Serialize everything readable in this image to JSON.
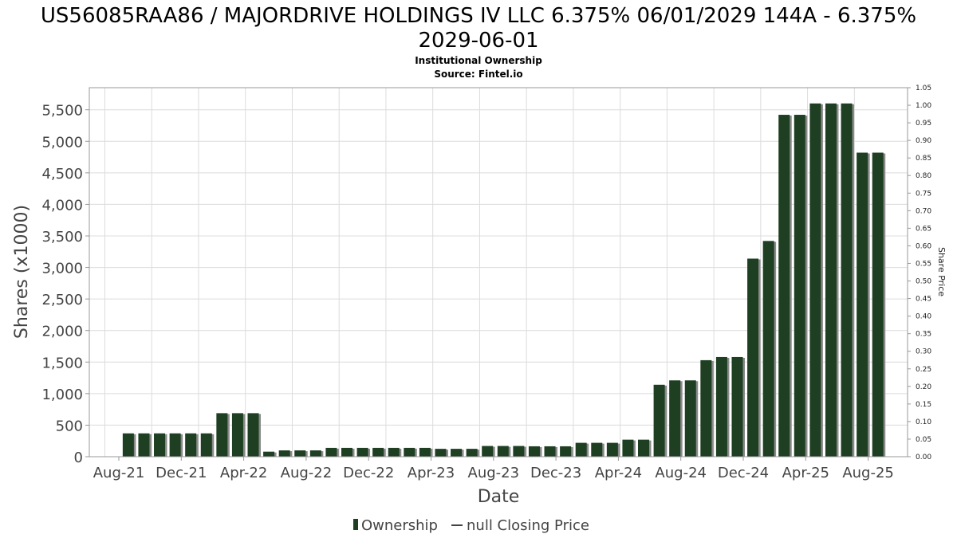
{
  "chart_data": {
    "type": "bar",
    "title_line1": "US56085RAA86 / MAJORDRIVE HOLDINGS IV LLC 6.375% 06/01/2029 144A - 6.375%",
    "title_line2": "2029-06-01",
    "subtitle_line1": "Institutional Ownership",
    "subtitle_line2": "Source: Fintel.io",
    "xlabel": "Date",
    "ylabel": "Shares (x1000)",
    "ylabel_right": "Share Price",
    "ylim": [
      0,
      5850
    ],
    "ylim_right": [
      0,
      1.05
    ],
    "yticks": [
      "0",
      "500",
      "1,000",
      "1,500",
      "2,000",
      "2,500",
      "3,000",
      "3,500",
      "4,000",
      "4,500",
      "5,000",
      "5,500"
    ],
    "ytick_values": [
      0,
      500,
      1000,
      1500,
      2000,
      2500,
      3000,
      3500,
      4000,
      4500,
      5000,
      5500
    ],
    "yticks_right": [
      "0.00",
      "0.05",
      "0.10",
      "0.15",
      "0.20",
      "0.25",
      "0.30",
      "0.35",
      "0.40",
      "0.45",
      "0.50",
      "0.55",
      "0.60",
      "0.65",
      "0.70",
      "0.75",
      "0.80",
      "0.85",
      "0.90",
      "0.95",
      "1.00",
      "1.05"
    ],
    "ytick_right_values": [
      0,
      0.05,
      0.1,
      0.15,
      0.2,
      0.25,
      0.3,
      0.35,
      0.4,
      0.45,
      0.5,
      0.55,
      0.6,
      0.65,
      0.7,
      0.75,
      0.8,
      0.85,
      0.9,
      0.95,
      1.0,
      1.05
    ],
    "xticks": [
      "Aug-21",
      "Dec-21",
      "Apr-22",
      "Aug-22",
      "Dec-22",
      "Apr-23",
      "Aug-23",
      "Dec-23",
      "Apr-24",
      "Aug-24",
      "Dec-24",
      "Apr-25",
      "Aug-25"
    ],
    "values": [
      0,
      370,
      370,
      370,
      370,
      370,
      370,
      690,
      690,
      690,
      80,
      100,
      100,
      100,
      140,
      140,
      140,
      140,
      140,
      140,
      140,
      125,
      125,
      125,
      170,
      170,
      170,
      165,
      165,
      165,
      220,
      220,
      220,
      270,
      270,
      1140,
      1210,
      1210,
      1530,
      1580,
      1580,
      3140,
      3420,
      5420,
      5420,
      5600,
      5600,
      5600,
      4820,
      4820
    ],
    "series": [
      {
        "name": "Ownership",
        "color": "#1e3f22"
      },
      {
        "name": "null Closing Price",
        "color": "#444444"
      }
    ],
    "grid": true,
    "legend_position": "bottom"
  }
}
